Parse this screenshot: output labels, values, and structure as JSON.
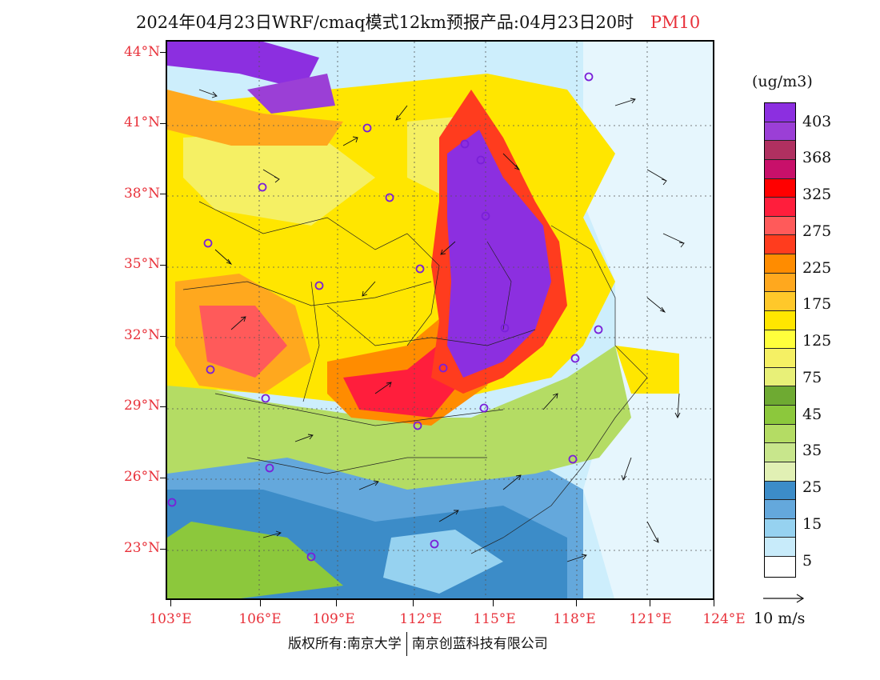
{
  "title": {
    "main": "2024年04月23日WRF/cmaq模式12km预报产品:04月23日20时",
    "variable": "PM10"
  },
  "lat_labels": [
    "44°N",
    "41°N",
    "38°N",
    "35°N",
    "32°N",
    "29°N",
    "26°N",
    "23°N"
  ],
  "lon_labels": [
    "103°E",
    "106°E",
    "109°E",
    "112°E",
    "115°E",
    "118°E",
    "121°E",
    "124°E"
  ],
  "colorbar": {
    "unit": "(ug/m3)",
    "labels": [
      "403",
      "368",
      "325",
      "275",
      "225",
      "175",
      "125",
      "75",
      "45",
      "35",
      "25",
      "15",
      "5"
    ],
    "colors": [
      "#8c2fe0",
      "#9b3fd6",
      "#b03060",
      "#c8106a",
      "#ff0000",
      "#ff1e3c",
      "#ff5a5a",
      "#ff3c1e",
      "#ff8c00",
      "#ffa81e",
      "#ffc82a",
      "#ffe600",
      "#ffff3c",
      "#f5f064",
      "#e8f078",
      "#6eaa32",
      "#8cc83c",
      "#b4dc64",
      "#c8e68c",
      "#e1f0b4",
      "#3c8cc8",
      "#64a8dc",
      "#96d2f0",
      "#c8ebfa",
      "#ffffff"
    ]
  },
  "vector_label": "10 m/s",
  "footer": {
    "left": "版权所有:南京大学",
    "right": "南京创蓝科技有限公司"
  }
}
